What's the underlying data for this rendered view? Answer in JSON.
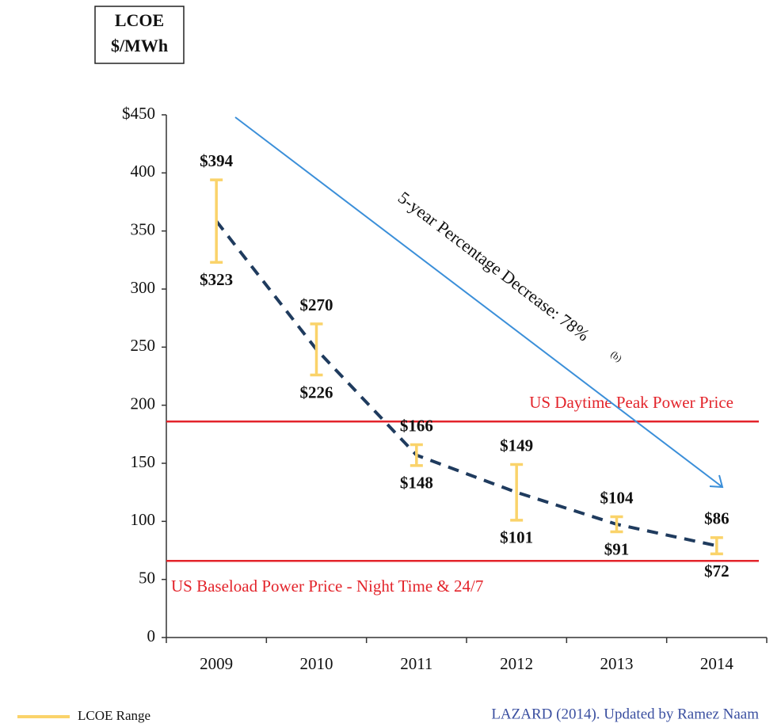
{
  "chart_data": {
    "type": "errorbar",
    "ylabel": [
      "LCOE",
      "$/MWh"
    ],
    "categories": [
      "2009",
      "2010",
      "2011",
      "2012",
      "2013",
      "2014"
    ],
    "series": [
      {
        "name": "LCOE Range",
        "color": "#fad36a",
        "high": {
          "values": [
            394,
            270,
            166,
            149,
            104,
            86
          ],
          "value_labels": [
            "$394",
            "$270",
            "$166",
            "$149",
            "$104",
            "$86"
          ]
        },
        "low": {
          "values": [
            323,
            226,
            148,
            101,
            91,
            72
          ],
          "value_labels": [
            "$323",
            "$226",
            "$148",
            "$101",
            "$91",
            "$72"
          ]
        }
      }
    ],
    "trend": {
      "color": "#1f3b5e",
      "values": [
        358.5,
        248,
        157,
        125,
        97.5,
        79
      ]
    },
    "reference_lines": [
      {
        "label": "US Daytime Peak Power Price",
        "value": 186,
        "color": "#e3242b"
      },
      {
        "label": "US Baseload Power Price - Night Time & 24/7",
        "value": 66,
        "color": "#e3242b"
      }
    ],
    "annotation": {
      "text": "5-year Percentage Decrease: 78%",
      "note": "(b)",
      "color": "#3b8fd9"
    },
    "source": "LAZARD (2014).  Updated by Ramez Naam",
    "ylim": [
      0,
      450
    ],
    "yticks": [
      0,
      50,
      100,
      150,
      200,
      250,
      300,
      350,
      400,
      {
        "value": 450,
        "label": "$450"
      }
    ]
  }
}
